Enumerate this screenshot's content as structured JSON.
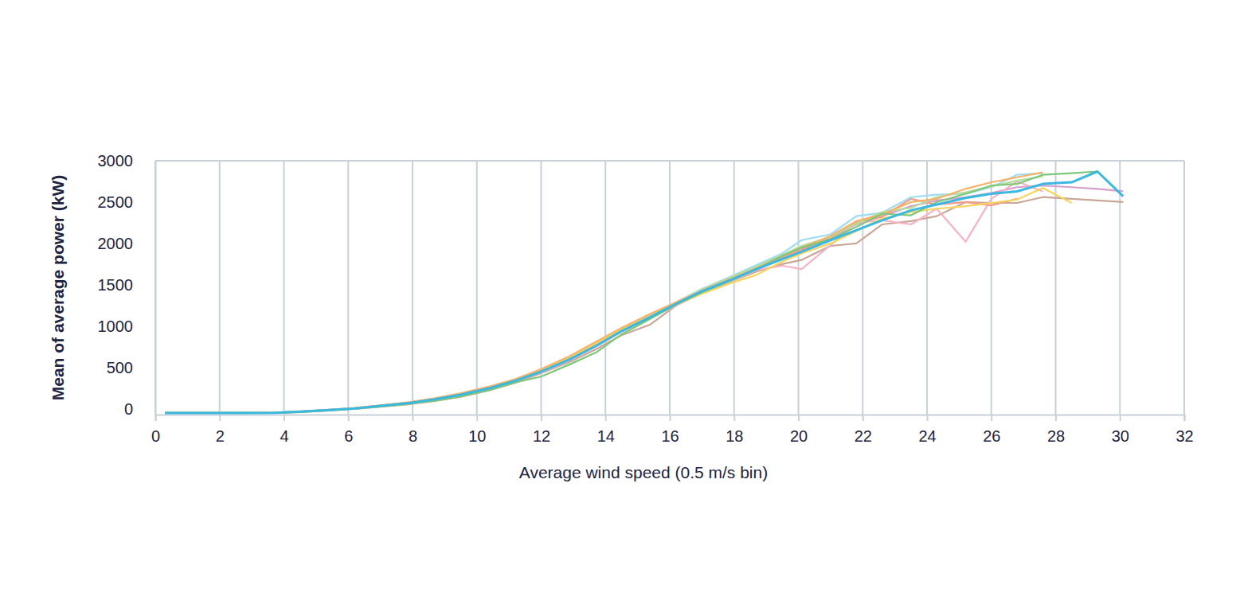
{
  "chart_data": {
    "type": "line",
    "x_label": "Average wind speed (0.5 m/s bin)",
    "y_label": "Mean of average power (kW)",
    "xlim": [
      0,
      32
    ],
    "xticks": [
      0,
      2,
      4,
      6,
      8,
      10,
      12,
      14,
      16,
      18,
      20,
      22,
      24,
      26,
      28,
      30,
      32
    ],
    "ylim": [
      -70,
      3000
    ],
    "yticks": [
      0,
      500,
      1000,
      1500,
      2000,
      2500,
      3000
    ],
    "grid": "x",
    "x": [
      0.3,
      1.2,
      2,
      2.9,
      3.7,
      4.5,
      5.4,
      6.2,
      7,
      7.9,
      8.7,
      9.5,
      10.4,
      11.2,
      12,
      12.9,
      13.7,
      14.5,
      15.4,
      16.2,
      17,
      17.9,
      18.7,
      19.5,
      20.1,
      21,
      21.8,
      22.6,
      23.5,
      24.3,
      25.2,
      26,
      26.8,
      27.6,
      28.5,
      29.3,
      30.1
    ],
    "series": [
      {
        "color": "#c8a797",
        "values": [
          -50,
          -50,
          -50,
          -50,
          -50,
          -40,
          -22,
          -2,
          25,
          55,
          95,
          145,
          225,
          315,
          430,
          570,
          720,
          890,
          1020,
          1250,
          1410,
          1540,
          1660,
          1750,
          1800,
          1970,
          2000,
          2230,
          2270,
          2330,
          2500,
          2490,
          2490,
          2560,
          2540,
          2520,
          2500
        ]
      },
      {
        "color": "#d79fcb",
        "values": [
          -50,
          -50,
          -50,
          -50,
          -48,
          -34,
          -14,
          6,
          36,
          72,
          118,
          172,
          252,
          342,
          455,
          605,
          765,
          945,
          1115,
          1275,
          1425,
          1570,
          1700,
          1830,
          1930,
          2060,
          2230,
          2330,
          2450,
          2520,
          2560,
          2610,
          2680,
          2700,
          2680,
          2660,
          2630
        ]
      },
      {
        "color": "#f6b3c6",
        "values": [
          -50,
          -50,
          -50,
          -50,
          -48,
          -36,
          -16,
          4,
          32,
          68,
          110,
          165,
          245,
          335,
          440,
          590,
          750,
          930,
          1100,
          1250,
          1400,
          1540,
          1680,
          1730,
          1690,
          1980,
          2250,
          2280,
          2230,
          2420,
          2020,
          2540,
          2750,
          2630,
          null,
          null,
          null
        ]
      },
      {
        "color": "#f59b89",
        "values": [
          -50,
          -50,
          -50,
          -50,
          -48,
          -35,
          -15,
          5,
          34,
          70,
          116,
          172,
          250,
          340,
          455,
          610,
          770,
          950,
          1120,
          1280,
          1430,
          1575,
          1710,
          1840,
          1920,
          2070,
          2260,
          2320,
          2540,
          2470,
          2500,
          2460,
          2540,
          null,
          null,
          null,
          null
        ]
      },
      {
        "color": "#9fdcef",
        "values": [
          -50,
          -50,
          -50,
          -50,
          -48,
          -33,
          -12,
          8,
          40,
          78,
          125,
          180,
          260,
          350,
          470,
          620,
          790,
          970,
          1140,
          1290,
          1450,
          1600,
          1740,
          1880,
          2040,
          2110,
          2330,
          2370,
          2560,
          2590,
          2600,
          2680,
          2830,
          2850,
          null,
          null,
          null
        ]
      },
      {
        "color": "#b7dd9a",
        "values": [
          -50,
          -50,
          -50,
          -50,
          -48,
          -34,
          -13,
          7,
          38,
          74,
          120,
          176,
          256,
          346,
          462,
          615,
          780,
          955,
          1125,
          1285,
          1440,
          1590,
          1720,
          1860,
          1970,
          2080,
          2240,
          2380,
          2430,
          2560,
          2620,
          2690,
          2760,
          2810,
          null,
          null,
          null
        ]
      },
      {
        "color": "#f8d45c",
        "values": [
          -50,
          -50,
          -50,
          -50,
          -48,
          -35,
          -14,
          6,
          38,
          75,
          120,
          178,
          258,
          350,
          470,
          630,
          790,
          960,
          1120,
          1260,
          1390,
          1520,
          1620,
          1780,
          1880,
          2000,
          2150,
          2300,
          2380,
          2420,
          2450,
          2490,
          2530,
          2670,
          2490,
          null,
          null
        ]
      },
      {
        "color": "#f5b26b",
        "values": [
          -50,
          -50,
          -50,
          -50,
          -47,
          -32,
          -10,
          10,
          42,
          80,
          130,
          190,
          270,
          360,
          480,
          640,
          810,
          980,
          1150,
          1290,
          1430,
          1570,
          1700,
          1850,
          1950,
          2090,
          2270,
          2350,
          2500,
          2540,
          2660,
          2740,
          2800,
          2860,
          null,
          null,
          null
        ]
      },
      {
        "color": "#7dc87a",
        "values": [
          -50,
          -50,
          -50,
          -50,
          -50,
          -40,
          -20,
          0,
          28,
          60,
          100,
          150,
          230,
          320,
          390,
          540,
          680,
          900,
          1090,
          1260,
          1410,
          1550,
          1690,
          1850,
          1950,
          2050,
          2200,
          2360,
          2340,
          2500,
          2600,
          2700,
          2720,
          2830,
          2850,
          2870,
          null
        ]
      },
      {
        "color": "#3bb8e0",
        "values": [
          -50,
          -50,
          -50,
          -50,
          -48,
          -35,
          -15,
          5,
          35,
          70,
          115,
          170,
          250,
          340,
          450,
          600,
          760,
          940,
          1110,
          1270,
          1420,
          1560,
          1690,
          1810,
          1900,
          2040,
          2160,
          2280,
          2400,
          2470,
          2550,
          2600,
          2630,
          2720,
          2740,
          2870,
          2570
        ]
      }
    ]
  }
}
